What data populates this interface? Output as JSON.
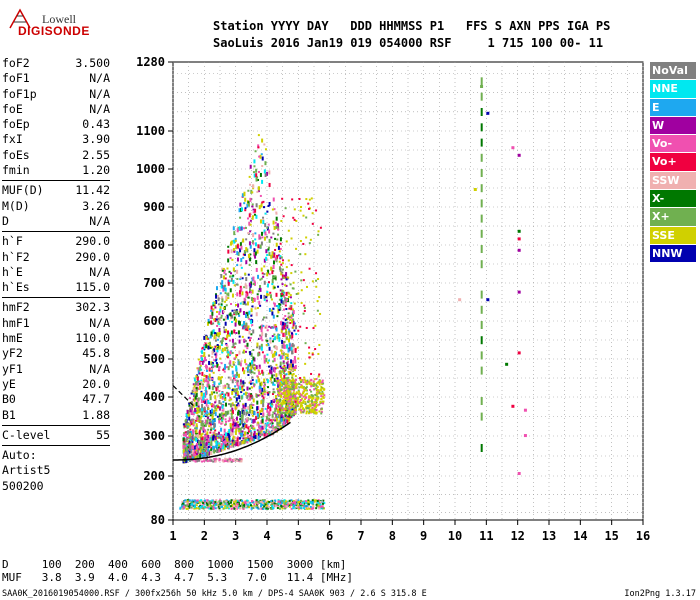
{
  "logo": {
    "line1": "Lowell",
    "line2": "DIGISONDE"
  },
  "header": {
    "line1": "Station YYYY DAY   DDD HHMMSS P1   FFS S AXN PPS IGA PS",
    "line2": "SaoLuis 2016 Jan19 019 054000 RSF     1 715 100 00- 11"
  },
  "params_group1": [
    {
      "label": "foF2",
      "value": "3.500"
    },
    {
      "label": "foF1",
      "value": "N/A"
    },
    {
      "label": "foF1p",
      "value": "N/A"
    },
    {
      "label": "foE",
      "value": "N/A"
    },
    {
      "label": "foEp",
      "value": "0.43"
    },
    {
      "label": "fxI",
      "value": "3.90"
    },
    {
      "label": "foEs",
      "value": "2.55"
    },
    {
      "label": "fmin",
      "value": "1.20"
    }
  ],
  "params_group2": [
    {
      "label": "MUF(D)",
      "value": "11.42"
    },
    {
      "label": "M(D)",
      "value": "3.26"
    },
    {
      "label": "D",
      "value": "N/A"
    }
  ],
  "params_group3": [
    {
      "label": "h`F",
      "value": "290.0"
    },
    {
      "label": "h`F2",
      "value": "290.0"
    },
    {
      "label": "h`E",
      "value": "N/A"
    },
    {
      "label": "h`Es",
      "value": "115.0"
    }
  ],
  "params_group4": [
    {
      "label": "hmF2",
      "value": "302.3"
    },
    {
      "label": "hmF1",
      "value": "N/A"
    },
    {
      "label": "hmE",
      "value": "110.0"
    },
    {
      "label": "yF2",
      "value": "45.8"
    },
    {
      "label": "yF1",
      "value": "N/A"
    },
    {
      "label": "yE",
      "value": "20.0"
    },
    {
      "label": "B0",
      "value": "47.7"
    },
    {
      "label": "B1",
      "value": "1.88"
    }
  ],
  "clevel": {
    "label": "C-level",
    "value": "55"
  },
  "auto": {
    "line1": "Auto:",
    "line2": "Artist5",
    "line3": "500200"
  },
  "legend": [
    {
      "label": "NoVal",
      "color": "#808080"
    },
    {
      "label": "NNE",
      "color": "#00e8f0"
    },
    {
      "label": "E",
      "color": "#1ea8f0"
    },
    {
      "label": "W",
      "color": "#a000a0"
    },
    {
      "label": "Vo-",
      "color": "#f050b0"
    },
    {
      "label": "Vo+",
      "color": "#f00040"
    },
    {
      "label": "SSW",
      "color": "#f0b0b0"
    },
    {
      "label": "X-",
      "color": "#007800"
    },
    {
      "label": "X+",
      "color": "#70b050"
    },
    {
      "label": "SSE",
      "color": "#d0d000"
    },
    {
      "label": "NNW",
      "color": "#0000b0"
    }
  ],
  "bottom": {
    "line1": "D     100  200  400  600  800  1000  1500  3000 [km]",
    "line2": "MUF   3.8  3.9  4.0  4.3  4.7  5.3   7.0   11.4 [MHz]"
  },
  "footer": {
    "left": "SAA0K_2016019054000.RSF / 300fx256h 50 kHz 5.0 km / DPS-4 SAA0K 903 / 2.6 S 315.8 E",
    "right": "Ion2Png 1.3.17"
  },
  "chart_data": {
    "type": "scatter",
    "xlabel": "",
    "ylabel": "",
    "xlim": [
      1,
      16
    ],
    "x_ticks": [
      "1",
      "2",
      "3",
      "4",
      "5",
      "6",
      "7",
      "8",
      "9",
      "10",
      "11",
      "12",
      "13",
      "14",
      "15",
      "16"
    ],
    "y_ticks": [
      {
        "v": 80,
        "label": "80"
      },
      {
        "v": 200,
        "label": "200"
      },
      {
        "v": 300,
        "label": "300"
      },
      {
        "v": 400,
        "label": "400"
      },
      {
        "v": 500,
        "label": "500"
      },
      {
        "v": 600,
        "label": "600"
      },
      {
        "v": 700,
        "label": "700"
      },
      {
        "v": 800,
        "label": "800"
      },
      {
        "v": 900,
        "label": "900"
      },
      {
        "v": 1000,
        "label": "1000"
      },
      {
        "v": 1100,
        "label": "1100"
      },
      {
        "v": 1280,
        "label": "1280"
      }
    ],
    "y_scale": "height km (non-linear ionogram scale)",
    "grid": true,
    "main_trace": {
      "x_range": [
        1.3,
        5.8
      ],
      "y_range": [
        240,
        1130
      ],
      "dominant_colors": [
        "SSE",
        "X+",
        "W",
        "Vo-",
        "NNW"
      ]
    },
    "es_trace": {
      "x_range": [
        1.2,
        5.8
      ],
      "y": 125
    },
    "other_points": [
      {
        "x": 10.8,
        "y": 1220,
        "color": "X+"
      },
      {
        "x": 11.0,
        "y": 1150,
        "color": "NNW"
      },
      {
        "x": 11.8,
        "y": 1060,
        "color": "Vo-"
      },
      {
        "x": 12.0,
        "y": 1040,
        "color": "W"
      },
      {
        "x": 12.0,
        "y": 840,
        "color": "X-"
      },
      {
        "x": 12.0,
        "y": 820,
        "color": "Vo+"
      },
      {
        "x": 12.0,
        "y": 790,
        "color": "W"
      },
      {
        "x": 12.0,
        "y": 680,
        "color": "W"
      },
      {
        "x": 12.0,
        "y": 520,
        "color": "Vo+"
      },
      {
        "x": 11.6,
        "y": 490,
        "color": "X-"
      },
      {
        "x": 11.8,
        "y": 380,
        "color": "Vo+"
      },
      {
        "x": 12.2,
        "y": 370,
        "color": "Vo-"
      },
      {
        "x": 12.2,
        "y": 305,
        "color": "Vo-"
      },
      {
        "x": 12.0,
        "y": 210,
        "color": "Vo-"
      },
      {
        "x": 10.6,
        "y": 950,
        "color": "SSE"
      },
      {
        "x": 11.0,
        "y": 660,
        "color": "NNW"
      },
      {
        "x": 10.1,
        "y": 660,
        "color": "SSW"
      }
    ],
    "fitted_profile": "black curve from (1,240) rising to (4.7,330), dashed branch from (1,430) to (1.6,380)"
  }
}
